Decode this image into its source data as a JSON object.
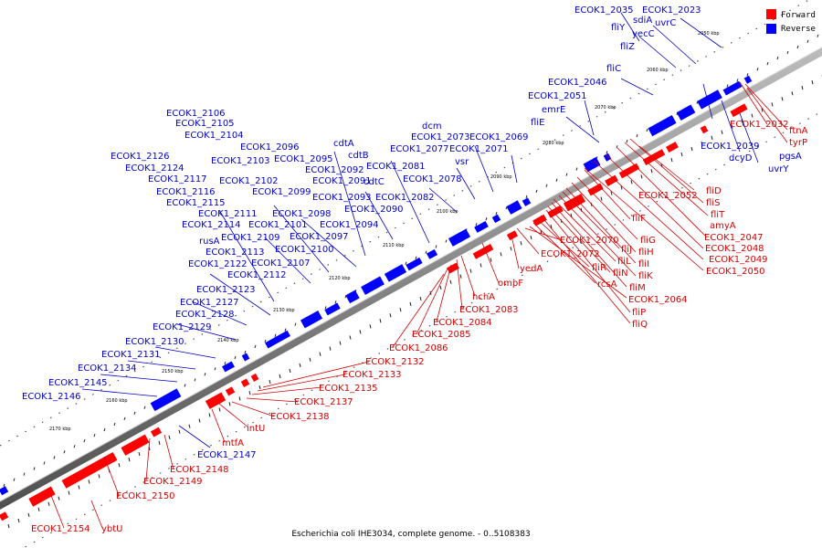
{
  "caption": "Escherichia coli IHE3034, complete genome. - 0..5108383",
  "legend": [
    {
      "label": "Forward",
      "color": "#ff0000"
    },
    {
      "label": "Reverse",
      "color": "#0000ff"
    }
  ],
  "axis_ticks": [
    "2050 kbp",
    "2060 kbp",
    "2070 kbp",
    "2080 kbp",
    "2090 kbp",
    "2100 kbp",
    "2110 kbp",
    "2120 kbp",
    "2130 kbp",
    "2140 kbp",
    "2150 kbp",
    "2160 kbp",
    "2170 kbp"
  ],
  "reverse_labels": [
    "ECOK1_2035",
    "ECOK1_2023",
    "sdiA",
    "uvrC",
    "fliY",
    "yecC",
    "fliZ",
    "fliC",
    "ECOK1_2046",
    "ECOK1_2051",
    "emrE",
    "fliE",
    "dcm",
    "ECOK1_2073",
    "ECOK1_2069",
    "ECOK1_2077",
    "ECOK1_2071",
    "vsr",
    "ECOK1_2081",
    "ECOK1_2078",
    "cdtA",
    "cdtB",
    "cdtC",
    "ECOK1_2082",
    "ECOK1_2090",
    "ECOK1_2092",
    "ECOK1_2091",
    "ECOK1_2093",
    "ECOK1_2094",
    "ECOK1_2095",
    "ECOK1_2096",
    "ECOK1_2097",
    "ECOK1_2098",
    "ECOK1_2099",
    "ECOK1_2100",
    "ECOK1_2101",
    "ECOK1_2102",
    "ECOK1_2103",
    "ECOK1_2104",
    "ECOK1_2105",
    "ECOK1_2106",
    "ECOK1_2107",
    "ECOK1_2109",
    "ECOK1_2111",
    "ECOK1_2112",
    "ECOK1_2113",
    "ECOK1_2114",
    "ECOK1_2115",
    "ECOK1_2116",
    "ECOK1_2117",
    "ECOK1_2122",
    "ECOK1_2123",
    "ECOK1_2124",
    "ECOK1_2126",
    "ECOK1_2127",
    "ECOK1_2128",
    "ECOK1_2129",
    "ECOK1_2130",
    "ECOK1_2131",
    "ECOK1_2134",
    "ECOK1_2145",
    "ECOK1_2146",
    "ECOK1_2147",
    "rusA",
    "ECOK1_2039",
    "dcyD",
    "uvrY",
    "pgsA"
  ],
  "forward_labels": [
    "ECOK1_2032",
    "ftnA",
    "tyrP",
    "ECOK1_2052",
    "fliD",
    "fliS",
    "fliT",
    "amyA",
    "ECOK1_2047",
    "ECOK1_2048",
    "ECOK1_2049",
    "ECOK1_2050",
    "fliF",
    "fliG",
    "fliH",
    "fliI",
    "fliJ",
    "fliK",
    "fliL",
    "fliM",
    "fliN",
    "fliP",
    "fliQ",
    "fliR",
    "rcsA",
    "ECOK1_2064",
    "ECOK1_2070",
    "ECOK1_2072",
    "yedA",
    "ompF",
    "hchA",
    "ECOK1_2083",
    "ECOK1_2084",
    "ECOK1_2085",
    "ECOK1_2086",
    "ECOK1_2132",
    "ECOK1_2133",
    "ECOK1_2135",
    "ECOK1_2137",
    "ECOK1_2138",
    "intU",
    "mtfA",
    "ECOK1_2148",
    "ECOK1_2149",
    "ECOK1_2150",
    "ECOK1_2154",
    "ybtU"
  ]
}
